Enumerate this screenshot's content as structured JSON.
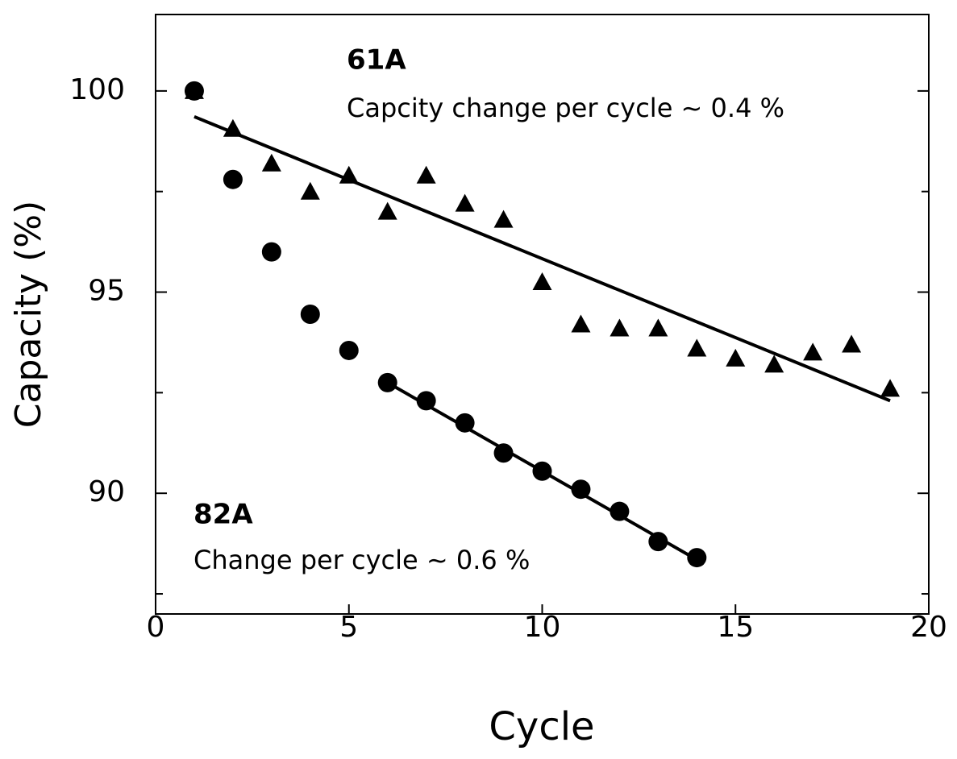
{
  "chart_data": {
    "type": "scatter",
    "xlabel": "Cycle",
    "ylabel": "Capacity (%)",
    "xlim": [
      0,
      20
    ],
    "ylim": [
      87,
      101.9
    ],
    "xticks": [
      0,
      5,
      10,
      15,
      20
    ],
    "yticks": [
      90,
      95,
      100
    ],
    "yminor": [
      87.5,
      92.5,
      97.5
    ],
    "annotations": [
      "61A",
      "Capcity change per cycle ~ 0.4 %",
      "82A",
      "Change per cycle ~ 0.6 %"
    ],
    "series": [
      {
        "marker": "triangle",
        "color": "#000000",
        "x": [
          1,
          2,
          3,
          4,
          5,
          6,
          7,
          8,
          9,
          10,
          11,
          12,
          13,
          14,
          15,
          16,
          17,
          18,
          19
        ],
        "values": [
          100,
          99.06,
          98.2,
          97.5,
          97.9,
          97.0,
          97.9,
          97.2,
          96.8,
          95.25,
          94.2,
          94.1,
          94.1,
          93.6,
          93.35,
          93.2,
          93.5,
          93.7,
          92.6
        ],
        "fit": {
          "x": [
            1,
            19
          ],
          "values": [
            99.36,
            92.3
          ]
        }
      },
      {
        "marker": "circle",
        "color": "#000000",
        "x": [
          1,
          2,
          3,
          4,
          5,
          6,
          7,
          8,
          9,
          10,
          11,
          12,
          13,
          14
        ],
        "values": [
          100,
          97.8,
          96.0,
          94.45,
          93.55,
          92.75,
          92.3,
          91.75,
          91.0,
          90.55,
          90.1,
          89.55,
          88.8,
          88.4
        ],
        "fit": {
          "x": [
            6,
            14
          ],
          "values": [
            92.75,
            88.35
          ]
        }
      }
    ]
  }
}
